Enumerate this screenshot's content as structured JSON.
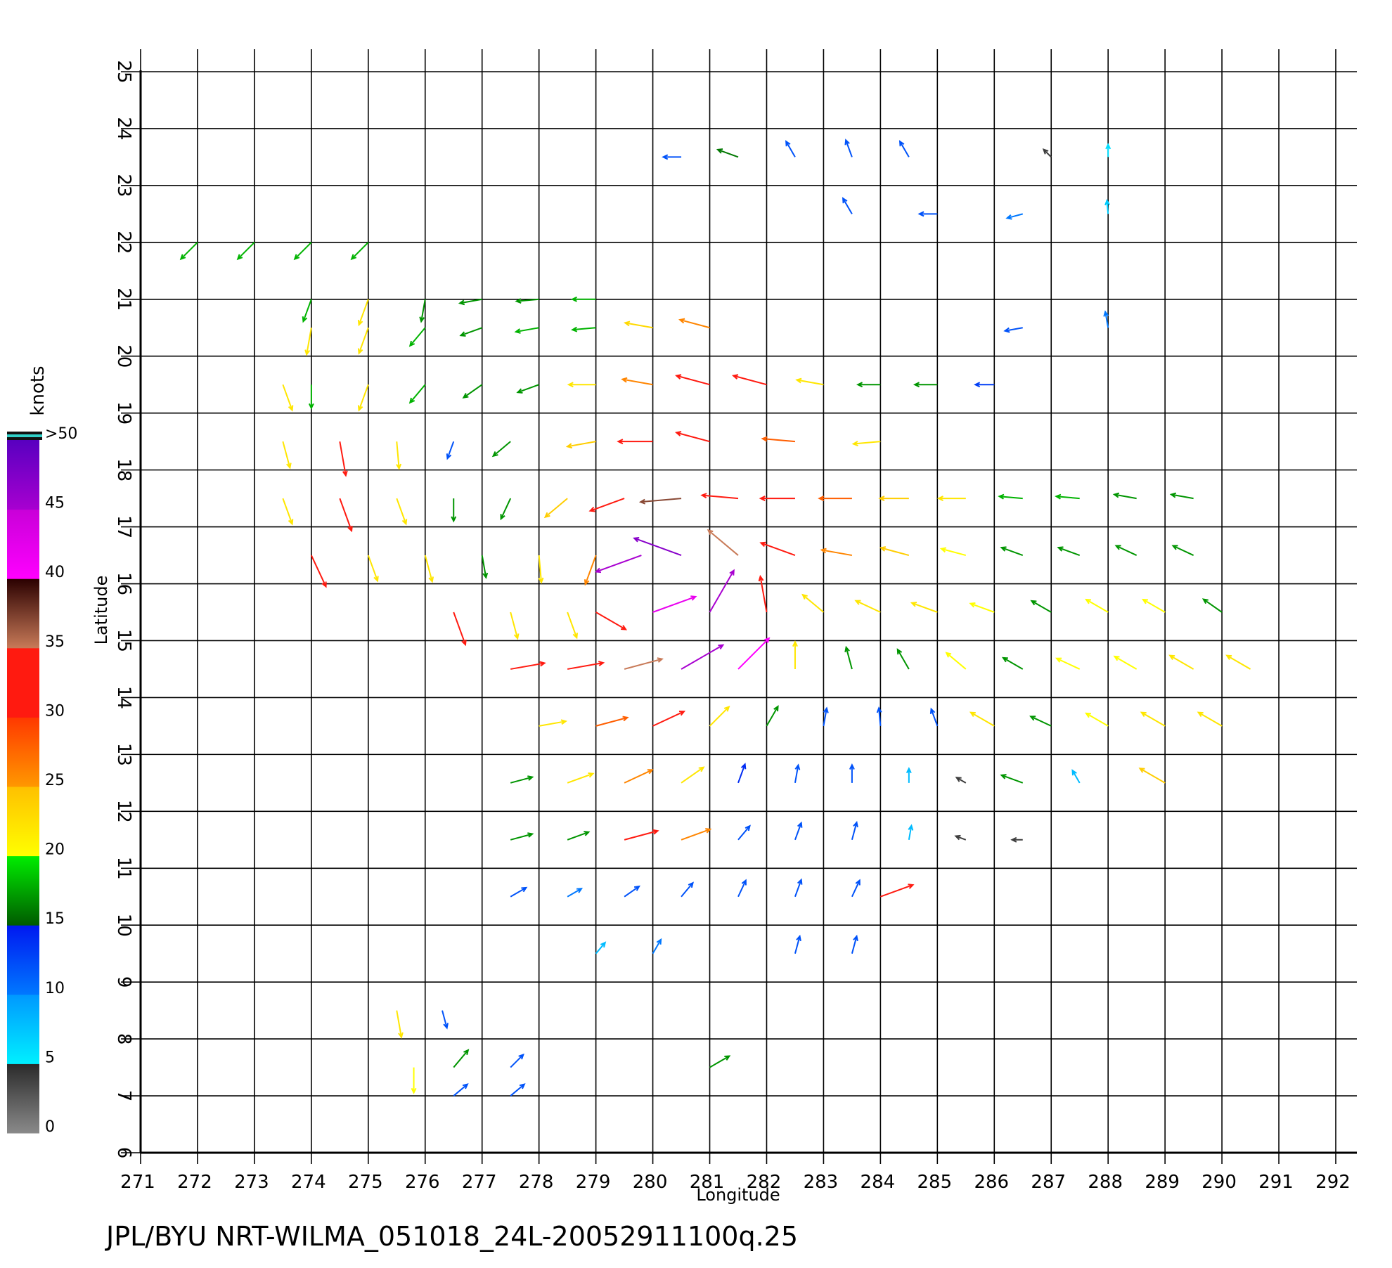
{
  "chart_data": {
    "type": "quiver",
    "title": "JPL/BYU  NRT-WILMA_051018_24L-20052911100q.25",
    "x_label": "Longitude",
    "y_label": "Latitude",
    "xlim": [
      271,
      292
    ],
    "ylim": [
      6,
      25
    ],
    "xticks": [
      271,
      272,
      273,
      274,
      275,
      276,
      277,
      278,
      279,
      280,
      281,
      282,
      283,
      284,
      285,
      286,
      287,
      288,
      289,
      290,
      291,
      292
    ],
    "yticks": [
      6,
      7,
      8,
      9,
      10,
      11,
      12,
      13,
      14,
      15,
      16,
      17,
      18,
      19,
      20,
      21,
      22,
      23,
      24,
      25
    ],
    "grid": true,
    "colorbar": {
      "label": "knots",
      "ticks": [
        0,
        5,
        10,
        15,
        20,
        25,
        30,
        35,
        40,
        45,
        {
          "value": 50,
          "label": ">50"
        }
      ],
      "bands": [
        [
          "#8a8a8a",
          "#2a2a2a"
        ],
        [
          "#00f0ff",
          "#0098ff"
        ],
        [
          "#0078ff",
          "#0018f0"
        ],
        [
          "#005a00",
          "#00ee00"
        ],
        [
          "#ffff00",
          "#ffc000"
        ],
        [
          "#ff9800",
          "#ff3800"
        ],
        [
          "#ff1a10",
          "#ff1a10"
        ],
        [
          "#c87a58",
          "#2a0000"
        ],
        [
          "#ff00ff",
          "#c800d8"
        ],
        [
          "#a800d0",
          "#5800c0"
        ]
      ]
    },
    "vectors": {
      "lon": [
        272,
        273,
        274,
        275,
        274,
        275,
        276,
        277,
        278,
        279,
        280.5,
        281.5,
        282.5,
        283.5,
        284.5,
        287,
        288,
        283.5,
        285,
        286.5,
        288,
        274,
        275,
        276,
        277,
        278,
        279,
        280,
        281,
        286.5,
        288,
        273.5,
        274,
        275,
        276,
        277,
        278,
        279,
        280,
        281,
        282,
        283,
        284,
        285,
        286,
        273.5,
        274.5,
        275.5,
        276.5,
        277.5,
        279,
        280,
        281,
        282.5,
        284,
        273.5,
        274.5,
        275.5,
        276.5,
        277.5,
        278.5,
        279.5,
        280.5,
        281.5,
        282.5,
        283.5,
        284.5,
        285.5,
        286.5,
        287.5,
        288.5,
        289.5,
        274,
        275,
        276,
        277,
        278,
        279,
        279.8,
        280.5,
        281.5,
        282.5,
        283.5,
        284.5,
        285.5,
        286.5,
        287.5,
        288.5,
        289.5,
        276.5,
        277.5,
        278.5,
        279,
        280,
        281,
        282,
        283,
        284,
        285,
        286,
        287,
        288,
        289,
        290,
        277.5,
        278.5,
        279.5,
        280.5,
        281.5,
        282.5,
        283.5,
        284.5,
        285.5,
        286.5,
        287.5,
        288.5,
        289.5,
        290.5,
        278,
        279,
        280,
        281,
        282,
        283,
        284,
        285,
        286,
        287,
        288,
        289,
        290,
        277.5,
        278.5,
        279.5,
        280.5,
        281.5,
        282.5,
        283.5,
        284.5,
        285.5,
        286.5,
        287.5,
        289,
        277.5,
        278.5,
        279.5,
        280.5,
        281.5,
        282.5,
        283.5,
        284.5,
        285.5,
        286.5,
        277.5,
        278.5,
        279.5,
        280.5,
        281.5,
        282.5,
        283.5,
        284,
        279,
        280,
        282.5,
        283.5,
        275.5,
        276.3,
        275.8,
        276.5,
        277.5,
        281,
        276.5,
        277.5
      ],
      "lat": [
        22,
        22,
        22,
        22,
        21,
        21,
        21,
        21,
        21,
        21,
        23.5,
        23.5,
        23.5,
        23.5,
        23.5,
        23.5,
        23.5,
        22.5,
        22.5,
        22.5,
        22.5,
        20.5,
        20.5,
        20.5,
        20.5,
        20.5,
        20.5,
        20.5,
        20.5,
        20.5,
        20.5,
        19.5,
        19.5,
        19.5,
        19.5,
        19.5,
        19.5,
        19.5,
        19.5,
        19.5,
        19.5,
        19.5,
        19.5,
        19.5,
        19.5,
        18.5,
        18.5,
        18.5,
        18.5,
        18.5,
        18.5,
        18.5,
        18.5,
        18.5,
        18.5,
        17.5,
        17.5,
        17.5,
        17.5,
        17.5,
        17.5,
        17.5,
        17.5,
        17.5,
        17.5,
        17.5,
        17.5,
        17.5,
        17.5,
        17.5,
        17.5,
        17.5,
        16.5,
        16.5,
        16.5,
        16.5,
        16.5,
        16.5,
        16.5,
        16.5,
        16.5,
        16.5,
        16.5,
        16.5,
        16.5,
        16.5,
        16.5,
        16.5,
        16.5,
        15.5,
        15.5,
        15.5,
        15.5,
        15.5,
        15.5,
        15.5,
        15.5,
        15.5,
        15.5,
        15.5,
        15.5,
        15.5,
        15.5,
        15.5,
        14.5,
        14.5,
        14.5,
        14.5,
        14.5,
        14.5,
        14.5,
        14.5,
        14.5,
        14.5,
        14.5,
        14.5,
        14.5,
        14.5,
        13.5,
        13.5,
        13.5,
        13.5,
        13.5,
        13.5,
        13.5,
        13.5,
        13.5,
        13.5,
        13.5,
        13.5,
        13.5,
        12.5,
        12.5,
        12.5,
        12.5,
        12.5,
        12.5,
        12.5,
        12.5,
        12.5,
        12.5,
        12.5,
        12.5,
        11.5,
        11.5,
        11.5,
        11.5,
        11.5,
        11.5,
        11.5,
        11.5,
        11.5,
        11.5,
        10.5,
        10.5,
        10.5,
        10.5,
        10.5,
        10.5,
        10.5,
        10.5,
        9.5,
        9.5,
        9.5,
        9.5,
        8.5,
        8.5,
        7.5,
        7.5,
        7.5,
        7.5,
        7,
        7
      ],
      "speed": [
        18,
        18,
        18,
        18,
        18,
        22,
        17,
        17,
        17,
        18,
        12,
        16,
        12,
        12,
        12,
        4,
        6,
        12,
        12,
        10,
        7,
        22,
        22,
        18,
        17,
        18,
        18,
        23,
        26,
        12,
        10,
        22,
        18,
        22,
        18,
        17,
        17,
        22,
        26,
        30,
        30,
        22,
        17,
        17,
        13,
        22,
        30,
        22,
        12,
        17,
        24,
        30,
        30,
        28,
        22,
        22,
        30,
        22,
        17,
        17,
        24,
        32,
        37,
        32,
        30,
        28,
        24,
        22,
        18,
        18,
        17,
        17,
        30,
        22,
        22,
        17,
        22,
        26,
        45,
        47,
        35,
        32,
        26,
        24,
        20,
        17,
        17,
        17,
        17,
        30,
        22,
        22,
        30,
        42,
        45,
        32,
        22,
        22,
        22,
        20,
        17,
        20,
        20,
        17,
        30,
        32,
        35,
        45,
        40,
        22,
        17,
        17,
        20,
        17,
        20,
        20,
        22,
        22,
        22,
        28,
        30,
        22,
        17,
        12,
        12,
        12,
        22,
        17,
        20,
        22,
        22,
        17,
        22,
        26,
        22,
        14,
        12,
        12,
        8,
        4,
        17,
        8,
        24,
        17,
        17,
        30,
        26,
        12,
        12,
        12,
        8,
        4,
        4,
        12,
        10,
        12,
        12,
        12,
        12,
        12,
        30,
        8,
        10,
        12,
        12,
        22,
        12,
        20,
        17,
        12,
        17,
        12,
        12
      ],
      "direction": [
        225,
        225,
        225,
        225,
        250,
        250,
        260,
        190,
        185,
        180,
        180,
        160,
        120,
        110,
        120,
        135,
        90,
        120,
        180,
        195,
        95,
        260,
        250,
        230,
        200,
        190,
        185,
        170,
        165,
        190,
        100,
        290,
        270,
        250,
        230,
        215,
        200,
        180,
        170,
        165,
        165,
        170,
        180,
        180,
        180,
        285,
        280,
        275,
        250,
        220,
        190,
        180,
        165,
        175,
        185,
        290,
        290,
        290,
        270,
        245,
        220,
        200,
        185,
        175,
        180,
        180,
        180,
        180,
        175,
        175,
        170,
        170,
        295,
        290,
        285,
        280,
        275,
        250,
        200,
        160,
        140,
        160,
        170,
        165,
        165,
        160,
        160,
        155,
        155,
        290,
        285,
        290,
        330,
        20,
        60,
        100,
        140,
        155,
        160,
        160,
        150,
        150,
        150,
        145,
        10,
        10,
        15,
        30,
        45,
        90,
        105,
        120,
        140,
        150,
        155,
        150,
        150,
        150,
        10,
        15,
        25,
        45,
        60,
        80,
        95,
        110,
        150,
        155,
        150,
        150,
        150,
        15,
        20,
        25,
        35,
        70,
        80,
        90,
        90,
        150,
        160,
        120,
        150,
        15,
        20,
        15,
        20,
        50,
        70,
        75,
        80,
        160,
        180,
        30,
        30,
        35,
        50,
        65,
        70,
        65,
        20,
        50,
        60,
        75,
        75,
        280,
        285,
        270,
        50,
        45,
        30,
        40,
        40
      ]
    }
  }
}
